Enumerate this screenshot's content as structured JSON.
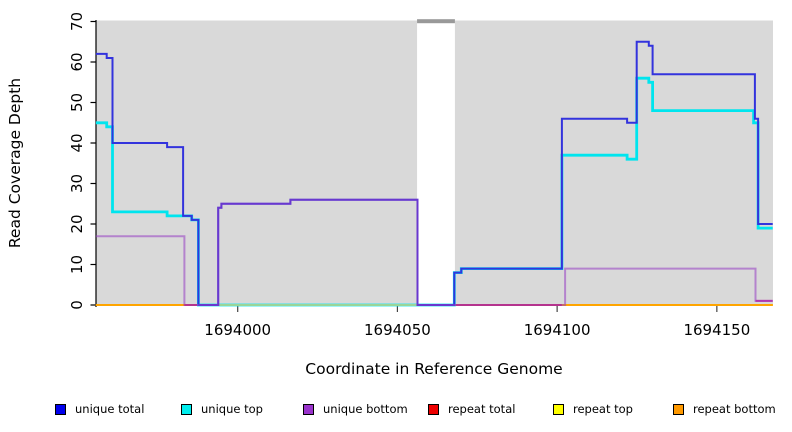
{
  "axes": {
    "x_label": "Coordinate in Reference Genome",
    "y_label": "Read Coverage Depth",
    "x_ticks": [
      {
        "label": "1694000",
        "coord": 1694000
      },
      {
        "label": "1694050",
        "coord": 1694050
      },
      {
        "label": "1694100",
        "coord": 1694100
      },
      {
        "label": "1694150",
        "coord": 1694150
      }
    ],
    "y_ticks": [
      0,
      10,
      20,
      30,
      40,
      50,
      60,
      70
    ]
  },
  "legend": [
    {
      "label": "unique total",
      "color": "#0000EE"
    },
    {
      "label": "unique top",
      "color": "#00EEEE"
    },
    {
      "label": "unique bottom",
      "color": "#9933CC"
    },
    {
      "label": "repeat total",
      "color": "#EE0000"
    },
    {
      "label": "repeat top",
      "color": "#FFFF00"
    },
    {
      "label": "repeat bottom",
      "color": "#FF9900"
    }
  ],
  "chart_data": {
    "type": "line",
    "subtype": "step",
    "xlabel": "Coordinate in Reference Genome",
    "ylabel": "Read Coverage Depth",
    "x_range": [
      1693955.6,
      1694167.5
    ],
    "ylim": [
      0,
      70
    ],
    "plot_bg": "#d9d9d9",
    "mask_band": {
      "x1": 1694056.15,
      "x2": 1694068.0,
      "cap_color": "#999999"
    },
    "series": [
      {
        "name": "unique top",
        "color": "#00E5EE",
        "width": 2.8,
        "points": [
          [
            1693955.6,
            45
          ],
          [
            1693959.0,
            44
          ],
          [
            1693960.8,
            23
          ],
          [
            1693977.9,
            22
          ],
          [
            1693985.6,
            21
          ],
          [
            1693987.7,
            0
          ],
          [
            1694067.8,
            8
          ],
          [
            1694070.0,
            9
          ],
          [
            1694101.5,
            37
          ],
          [
            1694121.9,
            36
          ],
          [
            1694124.9,
            56
          ],
          [
            1694128.7,
            55
          ],
          [
            1694129.9,
            48
          ],
          [
            1694161.5,
            45
          ],
          [
            1694162.9,
            19
          ]
        ]
      },
      {
        "name": "unique total",
        "color": "#3333DD",
        "width": 2,
        "points": [
          [
            1693955.6,
            62
          ],
          [
            1693959.0,
            61
          ],
          [
            1693960.8,
            40
          ],
          [
            1693977.9,
            39
          ],
          [
            1693982.9,
            22
          ],
          [
            1693985.6,
            21
          ],
          [
            1693987.7,
            0
          ],
          [
            1693993.9,
            24
          ],
          [
            1693994.9,
            25
          ],
          [
            1694016.5,
            26
          ],
          [
            1694056.3,
            0
          ],
          [
            1694067.8,
            8
          ],
          [
            1694070.0,
            9
          ],
          [
            1694101.5,
            46
          ],
          [
            1694121.9,
            45
          ],
          [
            1694124.9,
            65
          ],
          [
            1694128.7,
            64
          ],
          [
            1694129.9,
            57
          ],
          [
            1694161.9,
            46
          ],
          [
            1694162.9,
            20
          ]
        ]
      },
      {
        "name": "unique bottom",
        "color": "rgba(150,60,195,0.55)",
        "width": 2,
        "points": [
          [
            1693955.6,
            17
          ],
          [
            1693983.3,
            0
          ],
          [
            1693993.9,
            24
          ],
          [
            1693994.9,
            25
          ],
          [
            1694016.5,
            26
          ],
          [
            1694056.3,
            0
          ],
          [
            1694102.5,
            9
          ],
          [
            1694162.1,
            1
          ]
        ]
      },
      {
        "name": "repeat total",
        "color": "#EE0000",
        "width": 2,
        "points": [
          [
            1693955.6,
            0
          ]
        ],
        "baseline": true
      },
      {
        "name": "repeat top",
        "color": "#FFFF00",
        "width": 2,
        "points": [
          [
            1693955.6,
            0
          ]
        ],
        "baseline": true
      },
      {
        "name": "repeat bottom",
        "color": "#FFA500",
        "width": 2,
        "points": [
          [
            1693955.6,
            0
          ]
        ],
        "baseline": true
      }
    ],
    "baseline_segments": [
      {
        "name": "repeat-bottom-visible-left",
        "x1": 1693955.6,
        "x2": 1693983.3,
        "v": 0,
        "color": "#FFA500",
        "layer": 0
      },
      {
        "name": "repeat-total-visible",
        "x1": 1693983.3,
        "x2": 1694101.5,
        "v": 0,
        "color": "#DC2A4E",
        "layer": 0
      },
      {
        "name": "top-overlap-green",
        "x1": 1693993.9,
        "x2": 1694056.1,
        "v": 0,
        "color": "#99D699",
        "layer": 1
      },
      {
        "name": "repeat-bottom-visible-right",
        "x1": 1694101.5,
        "x2": 1694162.1,
        "v": 0,
        "color": "#FFA500",
        "layer": 0
      },
      {
        "name": "end-overlap-magenta",
        "x1": 1694162.1,
        "x2": 1694167.5,
        "v": 1,
        "color": "#CC3399",
        "layer": 0
      }
    ]
  }
}
